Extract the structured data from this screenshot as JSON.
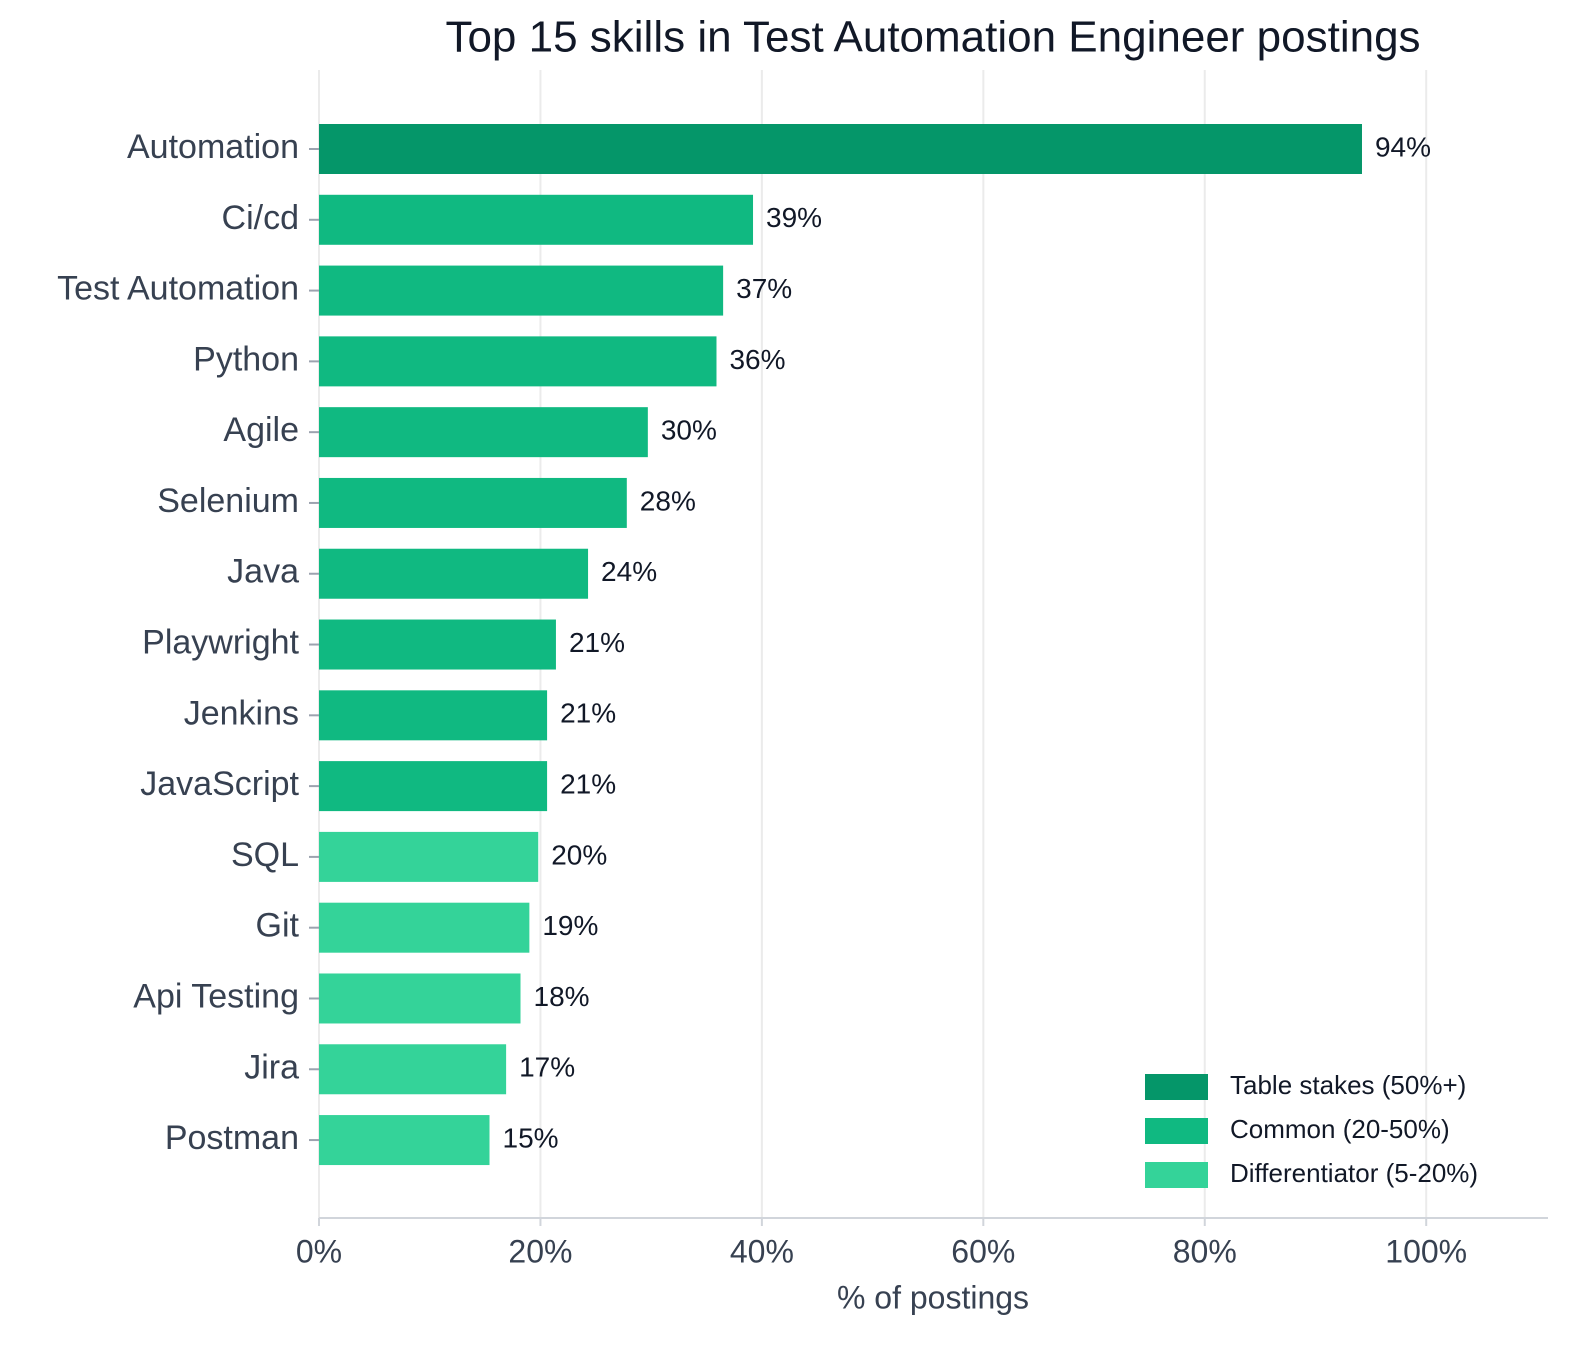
{
  "chart_data": {
    "type": "barh",
    "title": "Top 15 skills in Test Automation Engineer postings",
    "x_label": "% of postings",
    "categories": [
      "Automation",
      "Ci/cd",
      "Test Automation",
      "Python",
      "Agile",
      "Selenium",
      "Java",
      "Playwright",
      "Jenkins",
      "JavaScript",
      "SQL",
      "Git",
      "Api Testing",
      "Jira",
      "Postman"
    ],
    "values": [
      94.2,
      39.2,
      36.5,
      35.9,
      29.7,
      27.8,
      24.3,
      21.4,
      20.6,
      20.6,
      19.8,
      19.0,
      18.2,
      16.9,
      15.4
    ],
    "value_labels": [
      "94%",
      "39%",
      "37%",
      "36%",
      "30%",
      "28%",
      "24%",
      "21%",
      "21%",
      "21%",
      "20%",
      "19%",
      "18%",
      "17%",
      "15%"
    ],
    "colors": [
      "#059669",
      "#10b981",
      "#10b981",
      "#10b981",
      "#10b981",
      "#10b981",
      "#10b981",
      "#10b981",
      "#10b981",
      "#10b981",
      "#34d399",
      "#34d399",
      "#34d399",
      "#34d399",
      "#34d399"
    ],
    "legend": [
      {
        "name": "Table stakes (50%+)",
        "color": "#059669"
      },
      {
        "name": "Common (20-50%)",
        "color": "#10b981"
      },
      {
        "name": "Differentiator (5-20%)",
        "color": "#34d399"
      }
    ],
    "legend_position": "lower right",
    "xlim": [
      0,
      111
    ],
    "xticks": [
      {
        "value": 0,
        "label": "0%"
      },
      {
        "value": 20,
        "label": "20%"
      },
      {
        "value": 40,
        "label": "40%"
      },
      {
        "value": 60,
        "label": "60%"
      },
      {
        "value": 80,
        "label": "80%"
      },
      {
        "value": 100,
        "label": "100%"
      }
    ],
    "grid": true
  }
}
